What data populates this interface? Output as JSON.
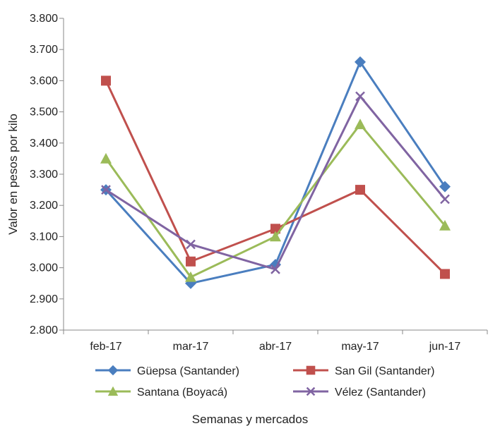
{
  "chart_data": {
    "type": "line",
    "title": "",
    "xlabel": "Semanas y mercados",
    "ylabel": "Valor en pesos por kilo",
    "categories": [
      "feb-17",
      "mar-17",
      "abr-17",
      "may-17",
      "jun-17"
    ],
    "ylim": [
      2800,
      3800
    ],
    "yticks": [
      2800,
      2900,
      3000,
      3100,
      3200,
      3300,
      3400,
      3500,
      3600,
      3700,
      3800
    ],
    "ytick_labels": [
      "2.800",
      "2.900",
      "3.000",
      "3.100",
      "3.200",
      "3.300",
      "3.400",
      "3.500",
      "3.600",
      "3.700",
      "3.800"
    ],
    "grid": false,
    "legend_position": "bottom",
    "series": [
      {
        "name": "Güepsa (Santander)",
        "color": "#4a7ebf",
        "marker": "diamond",
        "values": [
          3250,
          2950,
          3010,
          3660,
          3260
        ]
      },
      {
        "name": "San Gil (Santander)",
        "color": "#c0504d",
        "marker": "square",
        "values": [
          3600,
          3020,
          3125,
          3250,
          2980
        ]
      },
      {
        "name": "Santana (Boyacá)",
        "color": "#9bbb59",
        "marker": "triangle",
        "values": [
          3350,
          2970,
          3100,
          3460,
          3135
        ]
      },
      {
        "name": "Vélez (Santander)",
        "color": "#8064a2",
        "marker": "x",
        "values": [
          3250,
          3075,
          2995,
          3550,
          3220
        ]
      }
    ]
  }
}
